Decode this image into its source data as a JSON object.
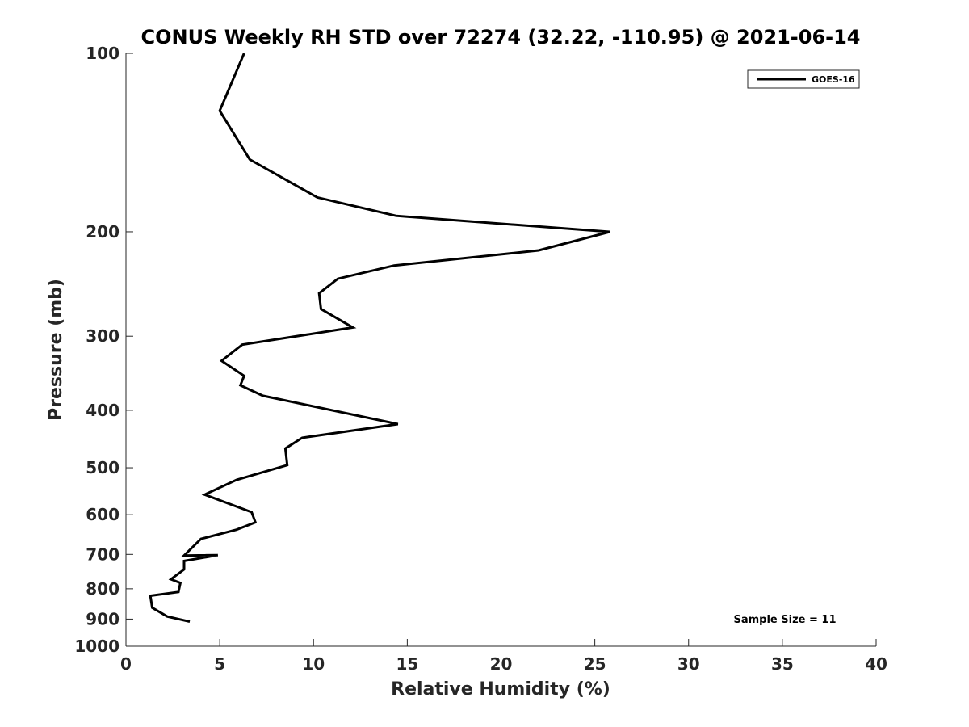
{
  "chart_data": {
    "type": "line",
    "title": "CONUS Weekly RH STD over 72274 (32.22, -110.95) @ 2021-06-14",
    "xlabel": "Relative Humidity (%)",
    "ylabel": "Pressure (mb)",
    "xlim": [
      0,
      40
    ],
    "ylim": [
      100,
      1000
    ],
    "yscale": "log",
    "y_reversed": true,
    "x_ticks": [
      0,
      5,
      10,
      15,
      20,
      25,
      30,
      35,
      40
    ],
    "x_tick_labels": [
      "0",
      "5",
      "10",
      "15",
      "20",
      "25",
      "30",
      "35",
      "40"
    ],
    "y_ticks": [
      100,
      200,
      300,
      400,
      500,
      600,
      700,
      800,
      900,
      1000
    ],
    "y_tick_labels": [
      "100",
      "200",
      "300",
      "400",
      "500",
      "600",
      "700",
      "800",
      "900",
      "1000"
    ],
    "legend": {
      "location": "top-right",
      "entries": [
        "GOES-16"
      ]
    },
    "annotation": "Sample Size = 11",
    "line_color": "#000000",
    "series": [
      {
        "name": "GOES-16",
        "x": [
          6.3,
          5.0,
          6.6,
          10.2,
          14.4,
          25.8,
          22.0,
          14.3,
          11.3,
          10.3,
          10.4,
          12.1,
          6.2,
          5.1,
          6.3,
          6.1,
          7.3,
          14.5,
          9.4,
          8.5,
          8.6,
          5.9,
          4.2,
          6.7,
          6.9,
          5.9,
          4.0,
          3.1,
          4.9,
          3.1,
          3.1,
          2.4,
          2.9,
          2.8,
          1.3,
          1.4,
          2.2,
          3.4
        ],
        "y": [
          100,
          125,
          151,
          175,
          188,
          200,
          215,
          228,
          240,
          254,
          270,
          290,
          310,
          330,
          350,
          363,
          378,
          422,
          445,
          464,
          495,
          524,
          555,
          594,
          618,
          636,
          659,
          703,
          702,
          718,
          742,
          771,
          782,
          810,
          822,
          861,
          891,
          909
        ]
      }
    ]
  }
}
